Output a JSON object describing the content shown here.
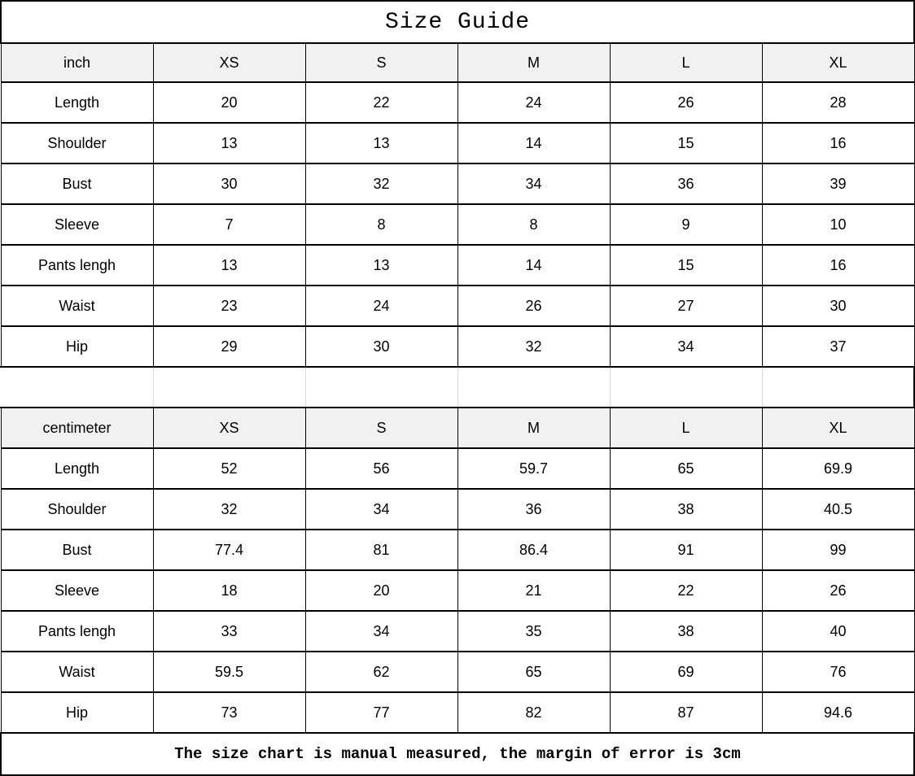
{
  "title": "Size Guide",
  "footer_note": "The size chart is manual measured, the margin of error is 3cm",
  "colors": {
    "background": "#ffffff",
    "border": "#000000",
    "header_bg": "#f1f1f1",
    "spacer_divider": "#d9d9d9",
    "text": "#000000"
  },
  "chart_data": [
    {
      "type": "table",
      "title": "inch",
      "columns": [
        "inch",
        "XS",
        "S",
        "M",
        "L",
        "XL"
      ],
      "rows": [
        [
          "Length",
          "20",
          "22",
          "24",
          "26",
          "28"
        ],
        [
          "Shoulder",
          "13",
          "13",
          "14",
          "15",
          "16"
        ],
        [
          "Bust",
          "30",
          "32",
          "34",
          "36",
          "39"
        ],
        [
          "Sleeve",
          "7",
          "8",
          "8",
          "9",
          "10"
        ],
        [
          "Pants lengh",
          "13",
          "13",
          "14",
          "15",
          "16"
        ],
        [
          "Waist",
          "23",
          "24",
          "26",
          "27",
          "30"
        ],
        [
          "Hip",
          "29",
          "30",
          "32",
          "34",
          "37"
        ]
      ]
    },
    {
      "type": "table",
      "title": "centimeter",
      "columns": [
        "centimeter",
        "XS",
        "S",
        "M",
        "L",
        "XL"
      ],
      "rows": [
        [
          "Length",
          "52",
          "56",
          "59.7",
          "65",
          "69.9"
        ],
        [
          "Shoulder",
          "32",
          "34",
          "36",
          "38",
          "40.5"
        ],
        [
          "Bust",
          "77.4",
          "81",
          "86.4",
          "91",
          "99"
        ],
        [
          "Sleeve",
          "18",
          "20",
          "21",
          "22",
          "26"
        ],
        [
          "Pants lengh",
          "33",
          "34",
          "35",
          "38",
          "40"
        ],
        [
          "Waist",
          "59.5",
          "62",
          "65",
          "69",
          "76"
        ],
        [
          "Hip",
          "73",
          "77",
          "82",
          "87",
          "94.6"
        ]
      ]
    }
  ]
}
